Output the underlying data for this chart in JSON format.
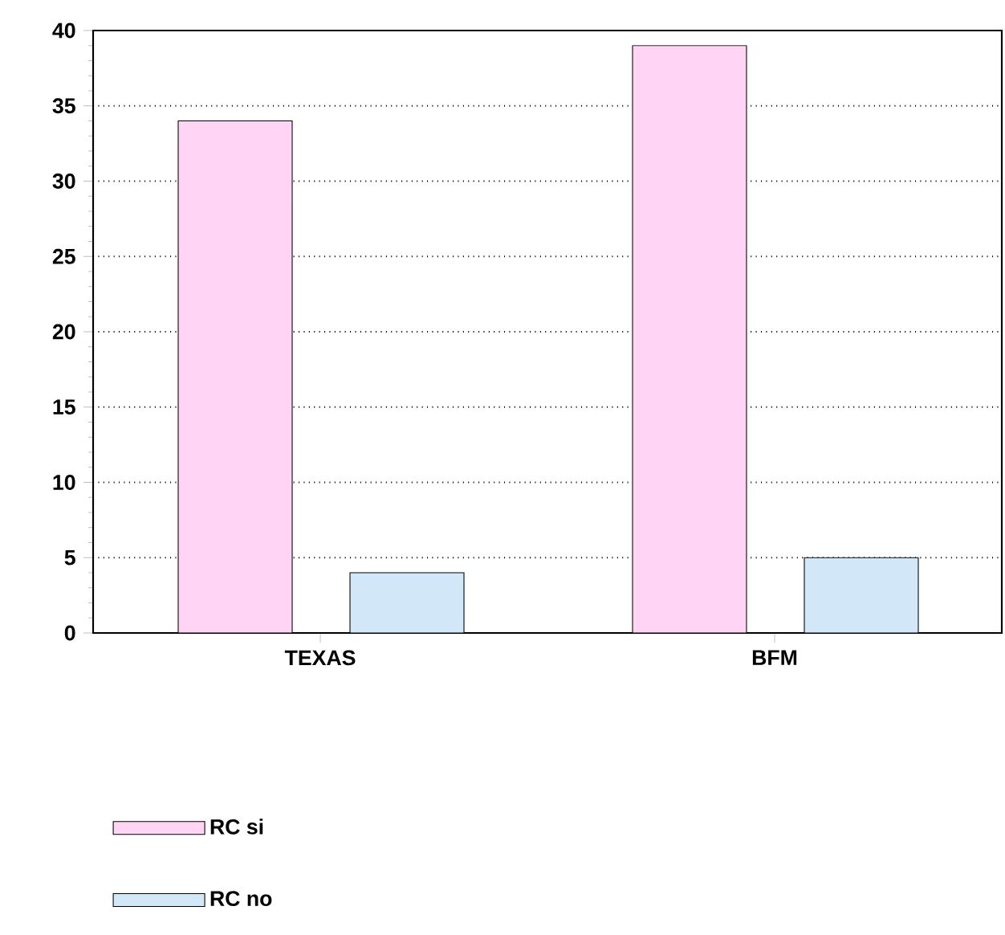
{
  "chart_data": {
    "type": "bar",
    "categories": [
      "TEXAS",
      "BFM"
    ],
    "series": [
      {
        "name": "RC si",
        "color": "#ffd4f4",
        "values": [
          34,
          39
        ]
      },
      {
        "name": "RC no",
        "color": "#d2e8f8",
        "values": [
          4,
          5
        ]
      }
    ],
    "ylim": [
      0,
      40
    ],
    "yticks": [
      0,
      5,
      10,
      15,
      20,
      25,
      30,
      35,
      40
    ],
    "grid": "y",
    "legend": "bottom left"
  }
}
